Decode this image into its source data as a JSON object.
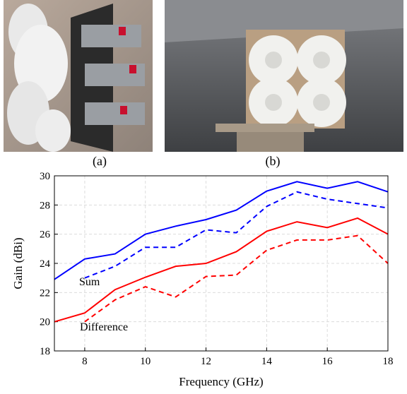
{
  "panels": [
    "(a)",
    "(b)"
  ],
  "chart_data": {
    "type": "line",
    "xlabel": "Frequency (GHz)",
    "ylabel": "Gain (dBi)",
    "annotations": [
      "Sum",
      "Difference"
    ],
    "x": [
      7,
      8,
      9,
      10,
      11,
      12,
      13,
      14,
      15,
      16,
      17,
      18
    ],
    "series": [
      {
        "color": "#0000ff",
        "dash": false,
        "values": [
          22.9,
          24.3,
          24.65,
          26.0,
          26.55,
          27.0,
          27.65,
          28.95,
          29.6,
          29.15,
          29.6,
          28.9
        ]
      },
      {
        "color": "#0000ff",
        "dash": true,
        "values": [
          null,
          23.0,
          23.8,
          25.1,
          25.1,
          26.3,
          26.1,
          27.9,
          28.9,
          28.4,
          28.1,
          27.8
        ]
      },
      {
        "color": "#ff0000",
        "dash": false,
        "values": [
          20.0,
          20.6,
          22.2,
          23.05,
          23.8,
          24.0,
          24.8,
          26.2,
          26.85,
          26.45,
          27.1,
          26.0
        ]
      },
      {
        "color": "#ff0000",
        "dash": true,
        "values": [
          null,
          20.0,
          21.5,
          22.4,
          21.7,
          23.1,
          23.2,
          24.9,
          25.6,
          25.6,
          25.9,
          24.0
        ]
      }
    ],
    "xlim": [
      7,
      18
    ],
    "ylim": [
      18,
      30
    ],
    "xticks": [
      8,
      10,
      12,
      14,
      16,
      18
    ],
    "yticks": [
      18,
      20,
      22,
      24,
      26,
      28,
      30
    ],
    "grid": true
  }
}
